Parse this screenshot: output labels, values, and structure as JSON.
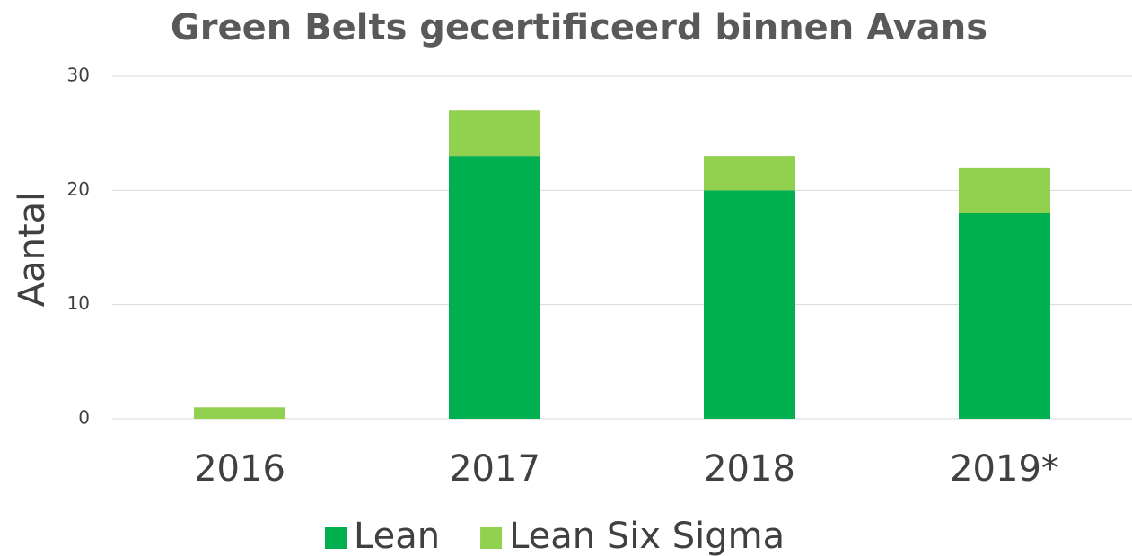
{
  "chart_data": {
    "type": "stacked_bar",
    "title": "Green Belts gecertificeerd binnen Avans",
    "y_label": "Aantal",
    "categories": [
      "2016",
      "2017",
      "2018",
      "2019*"
    ],
    "series": [
      {
        "name": "Lean",
        "color": "#00b050",
        "values": [
          0,
          23,
          20,
          18
        ]
      },
      {
        "name": "Lean Six Sigma",
        "color": "#92d050",
        "values": [
          1,
          4,
          3,
          4
        ]
      }
    ],
    "ylim": [
      0,
      30
    ],
    "yticks": [
      0,
      10,
      20,
      30
    ],
    "grid": true,
    "legend": "bottom"
  }
}
